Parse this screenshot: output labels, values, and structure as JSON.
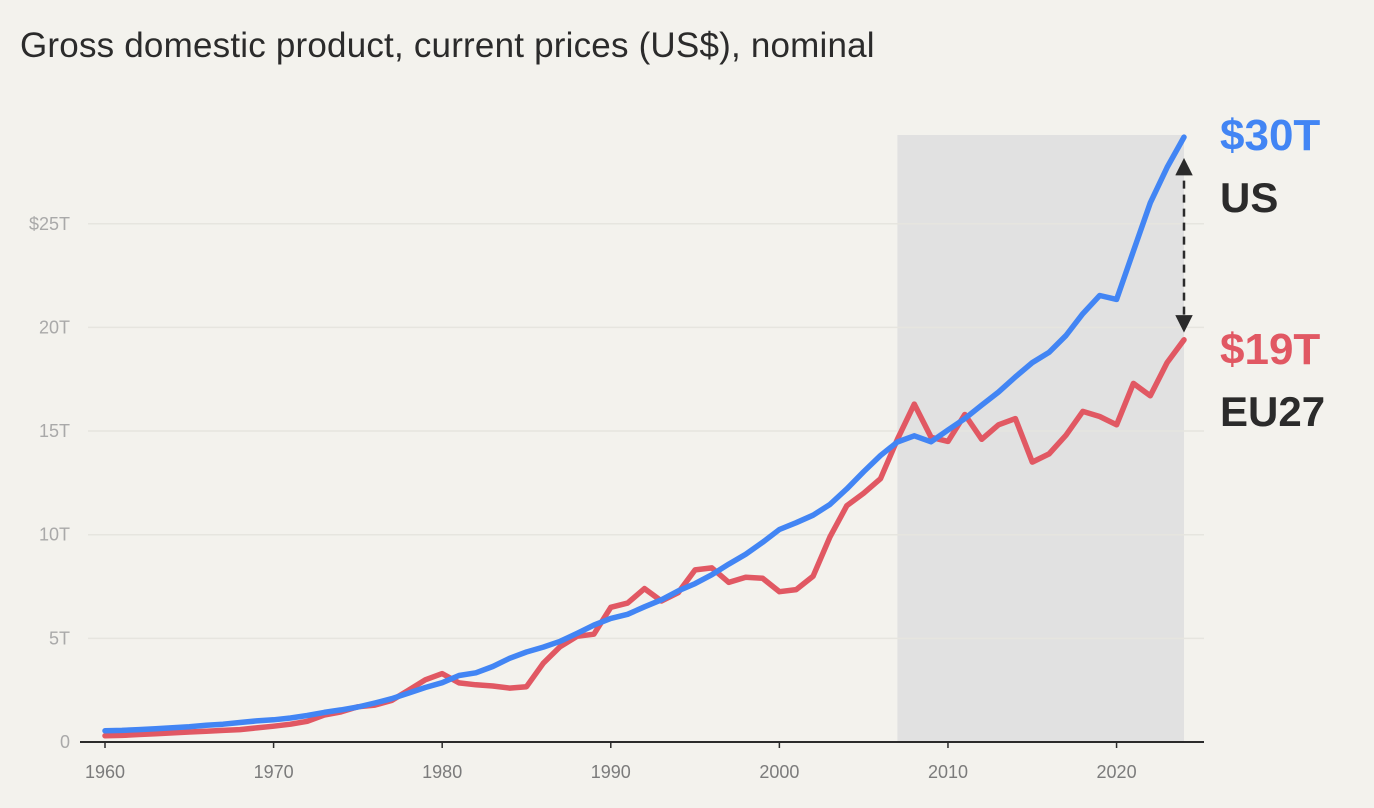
{
  "chart_data": {
    "type": "line",
    "title": "Gross domestic product, current prices (US$), nominal",
    "xlabel": "",
    "ylabel": "",
    "xlim": [
      1960,
      2024
    ],
    "ylim": [
      0,
      30
    ],
    "y_unit": "trillion US$",
    "grid": true,
    "x_ticks": [
      1960,
      1970,
      1980,
      1990,
      2000,
      2010,
      2020
    ],
    "x_tick_labels": [
      "1960",
      "1970",
      "1980",
      "1990",
      "2000",
      "2010",
      "2020"
    ],
    "y_ticks": [
      0,
      5,
      10,
      15,
      20,
      25
    ],
    "y_tick_labels": [
      "0",
      "5T",
      "10T",
      "15T",
      "20T",
      "$25T"
    ],
    "highlight_range": [
      2007,
      2024
    ],
    "gap_arrow": {
      "x": 2024,
      "from": 19.4,
      "to": 29.2
    },
    "series": [
      {
        "name": "US",
        "end_label": "$30T",
        "color": "#4285f4",
        "x": [
          1960,
          1961,
          1962,
          1963,
          1964,
          1965,
          1966,
          1967,
          1968,
          1969,
          1970,
          1971,
          1972,
          1973,
          1974,
          1975,
          1976,
          1977,
          1978,
          1979,
          1980,
          1981,
          1982,
          1983,
          1984,
          1985,
          1986,
          1987,
          1988,
          1989,
          1990,
          1991,
          1992,
          1993,
          1994,
          1995,
          1996,
          1997,
          1998,
          1999,
          2000,
          2001,
          2002,
          2003,
          2004,
          2005,
          2006,
          2007,
          2008,
          2009,
          2010,
          2011,
          2012,
          2013,
          2014,
          2015,
          2016,
          2017,
          2018,
          2019,
          2020,
          2021,
          2022,
          2023,
          2024
        ],
        "values": [
          0.54,
          0.56,
          0.6,
          0.64,
          0.69,
          0.74,
          0.81,
          0.86,
          0.94,
          1.02,
          1.07,
          1.16,
          1.28,
          1.43,
          1.55,
          1.69,
          1.88,
          2.09,
          2.36,
          2.63,
          2.86,
          3.21,
          3.34,
          3.64,
          4.04,
          4.34,
          4.58,
          4.86,
          5.24,
          5.64,
          5.96,
          6.16,
          6.52,
          6.86,
          7.29,
          7.64,
          8.07,
          8.58,
          9.06,
          9.63,
          10.25,
          10.58,
          10.94,
          11.46,
          12.21,
          13.04,
          13.82,
          14.47,
          14.77,
          14.48,
          15.05,
          15.6,
          16.25,
          16.88,
          17.61,
          18.3,
          18.8,
          19.61,
          20.66,
          21.54,
          21.35,
          23.68,
          26.01,
          27.72,
          29.18
        ]
      },
      {
        "name": "EU27",
        "end_label": "$19T",
        "color": "#e15863",
        "x": [
          1960,
          1961,
          1962,
          1963,
          1964,
          1965,
          1966,
          1967,
          1968,
          1969,
          1970,
          1971,
          1972,
          1973,
          1974,
          1975,
          1976,
          1977,
          1978,
          1979,
          1980,
          1981,
          1982,
          1983,
          1984,
          1985,
          1986,
          1987,
          1988,
          1989,
          1990,
          1991,
          1992,
          1993,
          1994,
          1995,
          1996,
          1997,
          1998,
          1999,
          2000,
          2001,
          2002,
          2003,
          2004,
          2005,
          2006,
          2007,
          2008,
          2009,
          2010,
          2011,
          2012,
          2013,
          2014,
          2015,
          2016,
          2017,
          2018,
          2019,
          2020,
          2021,
          2022,
          2023,
          2024
        ],
        "values": [
          0.3,
          0.32,
          0.36,
          0.4,
          0.44,
          0.48,
          0.52,
          0.56,
          0.6,
          0.68,
          0.76,
          0.86,
          1.0,
          1.3,
          1.45,
          1.7,
          1.78,
          2.0,
          2.5,
          3.0,
          3.3,
          2.85,
          2.76,
          2.7,
          2.6,
          2.67,
          3.8,
          4.6,
          5.1,
          5.2,
          6.5,
          6.7,
          7.4,
          6.8,
          7.2,
          8.3,
          8.4,
          7.7,
          7.95,
          7.9,
          7.25,
          7.35,
          8.0,
          9.9,
          11.4,
          12.0,
          12.7,
          14.6,
          16.3,
          14.7,
          14.5,
          15.8,
          14.6,
          15.3,
          15.6,
          13.5,
          13.9,
          14.8,
          15.95,
          15.7,
          15.3,
          17.3,
          16.7,
          18.3,
          19.4
        ]
      }
    ]
  }
}
